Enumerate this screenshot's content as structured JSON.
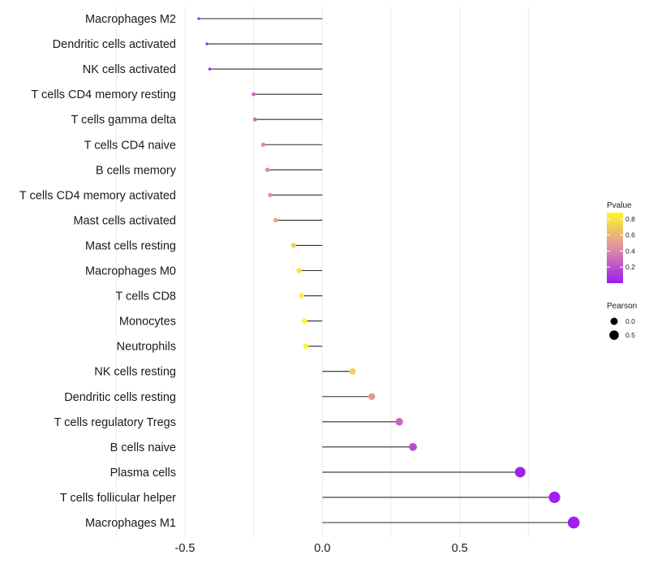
{
  "chart_data": {
    "type": "lollipop",
    "title": "",
    "xlabel": "",
    "ylabel": "",
    "xlim": [
      -0.5,
      0.9
    ],
    "x_ticks": [
      -0.5,
      0.0,
      0.5
    ],
    "x_tick_labels": [
      "-0.5",
      "0.0",
      "0.5"
    ],
    "grid": "vertical",
    "categories": [
      "Macrophages M2",
      "Dendritic cells activated",
      "NK cells activated",
      "T cells CD4 memory resting",
      "T cells gamma delta",
      "T cells CD4 naive",
      "B cells memory",
      "T cells CD4 memory activated",
      "Mast cells activated",
      "Mast cells resting",
      "Macrophages M0",
      "T cells CD8",
      "Monocytes",
      "Neutrophils",
      "NK cells resting",
      "Dendritic cells resting",
      "T cells regulatory  Tregs",
      "B cells naive",
      "Plasma cells",
      "T cells follicular helper",
      "Macrophages M1"
    ],
    "pearson": [
      -0.45,
      -0.42,
      -0.41,
      -0.25,
      -0.245,
      -0.215,
      -0.2,
      -0.19,
      -0.17,
      -0.105,
      -0.085,
      -0.075,
      -0.065,
      -0.06,
      0.11,
      0.18,
      0.28,
      0.33,
      0.72,
      0.845,
      0.915
    ],
    "pvalue": [
      0.02,
      0.04,
      0.05,
      0.3,
      0.32,
      0.4,
      0.42,
      0.47,
      0.52,
      0.72,
      0.8,
      0.86,
      0.88,
      0.9,
      0.72,
      0.48,
      0.28,
      0.18,
      0.02,
      0.01,
      0.01
    ],
    "legend": {
      "placement": "right",
      "color_title": "Pvalue",
      "color_ticks": [
        0.8,
        0.6,
        0.4,
        0.2
      ],
      "color_tick_labels": [
        "0.8",
        "0.6",
        "0.4",
        "0.2"
      ],
      "color_range": [
        0.0,
        0.88
      ],
      "color_low": "#9b1df0",
      "color_mid": "#e08fa2",
      "color_high": "#fff726",
      "size_title": "Pearson",
      "size_ticks": [
        0.0,
        0.5
      ],
      "size_tick_labels": [
        "0.0",
        "0.5"
      ]
    },
    "stem_color": "#2b2b2b",
    "grid_color": "#ebebeb"
  }
}
